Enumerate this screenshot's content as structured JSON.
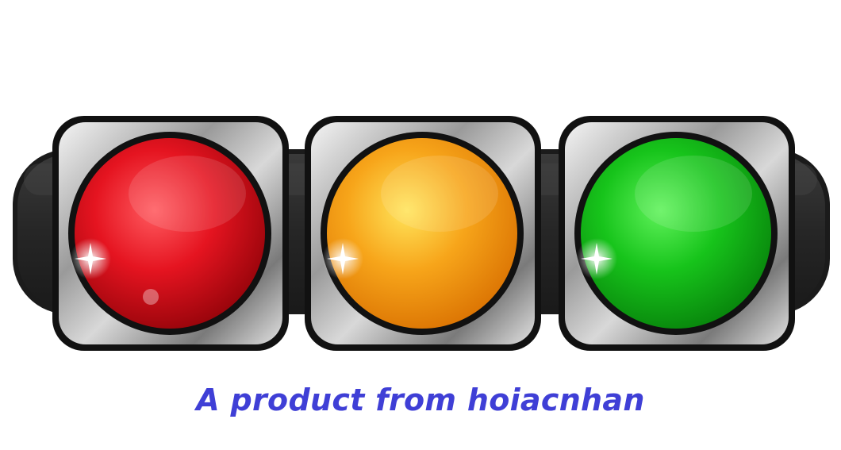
{
  "caption": {
    "text": "A product from hoiacnhan",
    "color": "#3f3fd6"
  },
  "traffic_light": {
    "housing_color": "#2a2a2a",
    "bezel_color": "#bdbdbd",
    "lamps": [
      {
        "name": "red",
        "base": "#d9141c",
        "light": "#ff5a5f",
        "dark": "#8d0208"
      },
      {
        "name": "amber",
        "base": "#f7a51a",
        "light": "#ffe45a",
        "dark": "#d86e00"
      },
      {
        "name": "green",
        "base": "#17c41b",
        "light": "#5ff25a",
        "dark": "#067d0a"
      }
    ]
  }
}
